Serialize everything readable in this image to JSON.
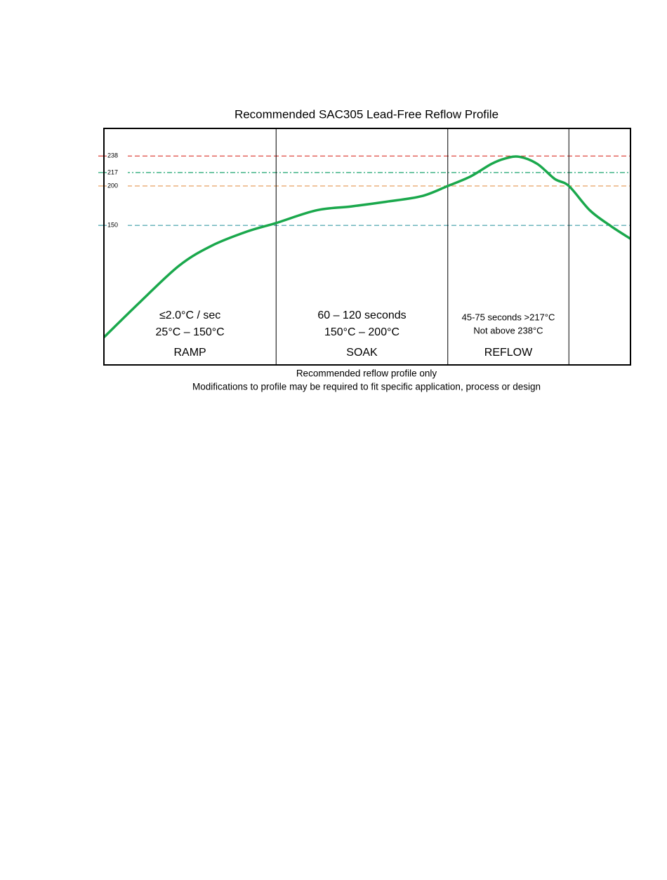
{
  "chart_data": {
    "type": "line",
    "title": "Recommended SAC305 Lead-Free Reflow Profile",
    "x": [
      0,
      6.9,
      14.3,
      20.4,
      27.1,
      32.7,
      40.3,
      46.9,
      53.6,
      60.3,
      65.3,
      69.6,
      73.6,
      76.3,
      78.9,
      82.3,
      85.6,
      88.3,
      92.3,
      96.3,
      100
    ],
    "values": [
      8,
      53,
      99,
      124,
      142,
      153,
      169,
      174,
      180,
      187,
      200,
      212,
      228,
      235,
      237,
      228,
      209,
      200,
      169,
      149,
      133
    ],
    "color": "#1aa84c",
    "xlim": [
      0,
      100
    ],
    "ylim": [
      -27,
      273
    ],
    "yticks": [
      150,
      200,
      217,
      238
    ],
    "ytick_line_colors": [
      "#3b9ea6",
      "#e8a060",
      "#1aa36f",
      "#d9352c"
    ],
    "ytick_line_styles": [
      "dashed",
      "dashed",
      "dashdot",
      "dashed"
    ],
    "dividers": [
      32.7,
      65.3,
      88.3
    ],
    "zones": [
      {
        "label": "RAMP",
        "notes": [
          "≤2.0°C / sec",
          "25°C – 150°C"
        ],
        "start": 0,
        "end": 32.7
      },
      {
        "label": "SOAK",
        "notes": [
          "60 – 120 seconds",
          "150°C – 200°C"
        ],
        "start": 32.7,
        "end": 65.3
      },
      {
        "label": "REFLOW",
        "notes": [
          "45-75 seconds >217°C",
          "Not above 238°C"
        ],
        "start": 65.3,
        "end": 88.3
      }
    ],
    "footnotes": [
      "Recommended reflow profile only",
      "Modifications to profile may be required to fit specific application, process or design"
    ]
  }
}
